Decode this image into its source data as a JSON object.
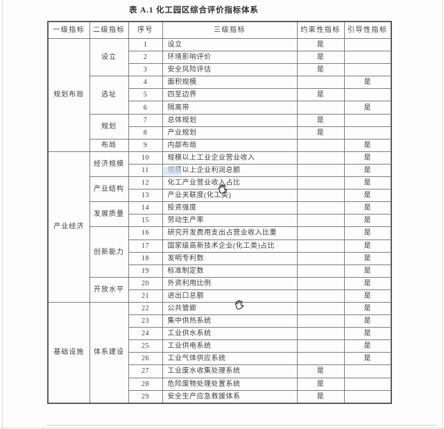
{
  "page_title": "表 A.1  化工园区综合评价指标体系",
  "colors": {
    "page_bg": "#fdfdfd",
    "border_outer": "#5a5a5a",
    "border_inner": "#7d7d7d",
    "text": "#3f3f3f",
    "artifact_highlight": "#c9def2"
  },
  "table": {
    "headers": [
      "一级指标",
      "二级指标",
      "序号",
      "三级指标",
      "约束性指标",
      "引导性指标"
    ],
    "yes_label": "是",
    "level1_groups": [
      {
        "label": "规划布局",
        "start": 1,
        "end": 9
      },
      {
        "label": "产业经济",
        "start": 10,
        "end": 21
      },
      {
        "label": "基础设施",
        "start": 22,
        "end": 29
      }
    ],
    "level2_groups": [
      {
        "label": "设立",
        "start": 1,
        "end": 3
      },
      {
        "label": "选址",
        "start": 4,
        "end": 6
      },
      {
        "label": "规划",
        "start": 7,
        "end": 8
      },
      {
        "label": "布局",
        "start": 9,
        "end": 9
      },
      {
        "label": "经济规模",
        "start": 10,
        "end": 11
      },
      {
        "label": "产业结构",
        "start": 12,
        "end": 13
      },
      {
        "label": "发展质量",
        "start": 14,
        "end": 15
      },
      {
        "label": "创新能力",
        "start": 16,
        "end": 19
      },
      {
        "label": "开放水平",
        "start": 20,
        "end": 21
      },
      {
        "label": "体系建设",
        "start": 22,
        "end": 29
      }
    ],
    "rows": [
      {
        "no": "1",
        "indicator": "设立",
        "constraint": "是",
        "guiding": ""
      },
      {
        "no": "2",
        "indicator": "环境影响评价",
        "constraint": "是",
        "guiding": ""
      },
      {
        "no": "3",
        "indicator": "安全风险评估",
        "constraint": "是",
        "guiding": ""
      },
      {
        "no": "4",
        "indicator": "面积规模",
        "constraint": "",
        "guiding": "是"
      },
      {
        "no": "5",
        "indicator": "四至边界",
        "constraint": "是",
        "guiding": ""
      },
      {
        "no": "6",
        "indicator": "隔离带",
        "constraint": "",
        "guiding": "是"
      },
      {
        "no": "7",
        "indicator": "总体规划",
        "constraint": "是",
        "guiding": ""
      },
      {
        "no": "8",
        "indicator": "产业规划",
        "constraint": "是",
        "guiding": ""
      },
      {
        "no": "9",
        "indicator": "内部布局",
        "constraint": "",
        "guiding": "是"
      },
      {
        "no": "10",
        "indicator": "规模以上工业企业营业收入",
        "constraint": "",
        "guiding": "是"
      },
      {
        "no": "11",
        "indicator": "规模以上企业利润总额",
        "constraint": "",
        "guiding": "是"
      },
      {
        "no": "12",
        "indicator": "化工产业营业收入占比",
        "constraint": "",
        "guiding": "是"
      },
      {
        "no": "13",
        "indicator": "产业关联度(化工类)",
        "constraint": "",
        "guiding": "是"
      },
      {
        "no": "14",
        "indicator": "投资强度",
        "constraint": "",
        "guiding": "是"
      },
      {
        "no": "15",
        "indicator": "劳动生产率",
        "constraint": "",
        "guiding": "是"
      },
      {
        "no": "16",
        "indicator": "研究开发费用支出占营业收入比重",
        "constraint": "",
        "guiding": "是"
      },
      {
        "no": "17",
        "indicator": "国家级高新技术企业(化工类)占比",
        "constraint": "",
        "guiding": "是"
      },
      {
        "no": "18",
        "indicator": "发明专利数",
        "constraint": "",
        "guiding": "是"
      },
      {
        "no": "19",
        "indicator": "标准制定数",
        "constraint": "",
        "guiding": "是"
      },
      {
        "no": "20",
        "indicator": "外资利用比例",
        "constraint": "",
        "guiding": "是"
      },
      {
        "no": "21",
        "indicator": "进出口总额",
        "constraint": "",
        "guiding": "是"
      },
      {
        "no": "22",
        "indicator": "公共管廊",
        "constraint": "",
        "guiding": "是"
      },
      {
        "no": "23",
        "indicator": "集中供热系统",
        "constraint": "",
        "guiding": "是"
      },
      {
        "no": "24",
        "indicator": "工业供水系统",
        "constraint": "",
        "guiding": "是"
      },
      {
        "no": "25",
        "indicator": "工业供电系统",
        "constraint": "",
        "guiding": "是"
      },
      {
        "no": "26",
        "indicator": "工业气体供应系统",
        "constraint": "",
        "guiding": "是"
      },
      {
        "no": "27",
        "indicator": "工业废水收集处理系统",
        "constraint": "是",
        "guiding": ""
      },
      {
        "no": "28",
        "indicator": "危险废物处理处置系统",
        "constraint": "是",
        "guiding": ""
      },
      {
        "no": "29",
        "indicator": "安全生产应急救援体系",
        "constraint": "是",
        "guiding": ""
      }
    ]
  }
}
